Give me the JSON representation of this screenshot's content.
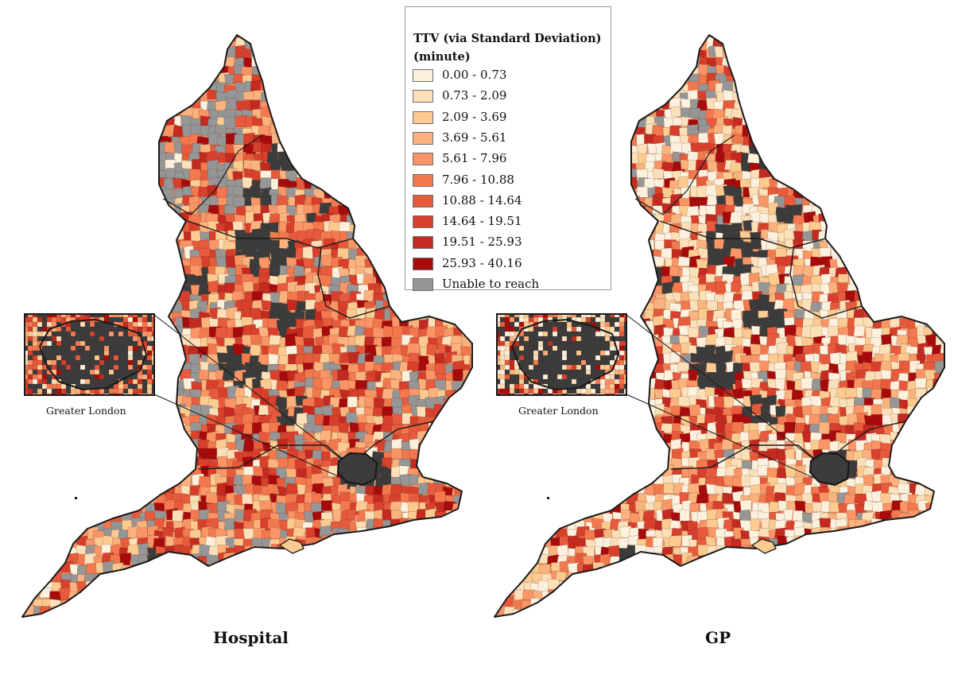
{
  "legend": {
    "title_line1": "TTV (via Standard Deviation)",
    "title_line2": "(minute)",
    "classes": [
      {
        "label": "0.00 - 0.73",
        "color": "#fdf0dc"
      },
      {
        "label": "0.73 - 2.09",
        "color": "#fde0b8"
      },
      {
        "label": "2.09 - 3.69",
        "color": "#fdcb8f"
      },
      {
        "label": "3.69 - 5.61",
        "color": "#fcb27d"
      },
      {
        "label": "5.61 - 7.96",
        "color": "#fb9566"
      },
      {
        "label": "7.96 - 10.88",
        "color": "#f4784d"
      },
      {
        "label": "10.88 - 14.64",
        "color": "#e85a3c"
      },
      {
        "label": "14.64 - 19.51",
        "color": "#d8402c"
      },
      {
        "label": "19.51 - 25.93",
        "color": "#c42a20"
      },
      {
        "label": "25.93 - 40.16",
        "color": "#a80b0b"
      },
      {
        "label": "Unable to reach",
        "color": "#969696"
      }
    ]
  },
  "panels": [
    {
      "title": "Hospital",
      "inset_label": "Greater London"
    },
    {
      "title": "GP",
      "inset_label": "Greater London"
    }
  ],
  "colors": {
    "border": "#1a1a1a",
    "urban": "#3c3c3c",
    "unreachable": "#969696"
  }
}
